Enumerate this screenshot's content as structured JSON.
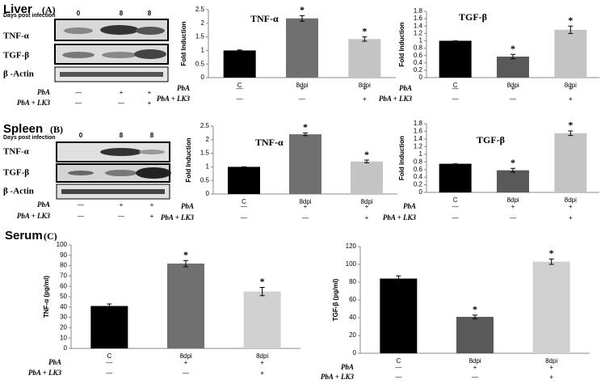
{
  "sections": [
    {
      "name": "Liver",
      "tag": "(A)"
    },
    {
      "name": "Spleen",
      "tag": "(B)"
    },
    {
      "name": "Serum",
      "tag": "(C)"
    }
  ],
  "blots": [
    {
      "header": "Days post infection",
      "lanes": [
        "0",
        "8",
        "8"
      ],
      "rows": [
        "TNF-α",
        "TGF-β",
        "β -Actin"
      ],
      "treatments": [
        {
          "label": "PbA",
          "signs": [
            "—",
            "+",
            "+"
          ]
        },
        {
          "label": "PbA + LK3",
          "signs": [
            "—",
            "—",
            "+"
          ]
        }
      ]
    },
    {
      "header": "Days post infection",
      "lanes": [
        "0",
        "8",
        "8"
      ],
      "rows": [
        "TNF-α",
        "TGF-β",
        "β -Actin"
      ],
      "treatments": [
        {
          "label": "PbA",
          "signs": [
            "—",
            "+",
            "+"
          ]
        },
        {
          "label": "PbA + LK3",
          "signs": [
            "—",
            "—",
            "+"
          ]
        }
      ]
    }
  ],
  "chart_data": [
    {
      "type": "bar",
      "title": "TNF-α",
      "ylabel": "Fold Induction",
      "categories": [
        "C",
        "8dpi",
        "8dpi"
      ],
      "values": [
        1,
        2.18,
        1.42
      ],
      "errors": [
        0.02,
        0.1,
        0.08
      ],
      "colors": [
        "#000000",
        "#707070",
        "#c4c4c4"
      ],
      "ylim": [
        0,
        2.5
      ],
      "yticks": [
        0,
        0.5,
        1,
        1.5,
        2,
        2.5
      ],
      "annotations": [
        {
          "index": 1,
          "text": "*"
        },
        {
          "index": 2,
          "text": "*"
        }
      ],
      "treatments": [
        {
          "label": "PbA",
          "signs": [
            "—",
            "+",
            "+"
          ]
        },
        {
          "label": "PbA + LK3",
          "signs": [
            "—",
            "—",
            "+"
          ]
        }
      ]
    },
    {
      "type": "bar",
      "title": "TGF-β",
      "ylabel": "Fold Induction",
      "categories": [
        "C",
        "8dpi",
        "8dpi"
      ],
      "values": [
        1,
        0.57,
        1.3
      ],
      "errors": [
        0,
        0.06,
        0.1
      ],
      "colors": [
        "#000000",
        "#595959",
        "#c4c4c4"
      ],
      "ylim": [
        0,
        1.8
      ],
      "yticks": [
        0,
        0.2,
        0.4,
        0.6,
        0.8,
        1,
        1.2,
        1.4,
        1.6,
        1.8
      ],
      "annotations": [
        {
          "index": 1,
          "text": "*"
        },
        {
          "index": 2,
          "text": "*"
        }
      ],
      "treatments": [
        {
          "label": "PbA",
          "signs": [
            "—",
            "+",
            "+"
          ]
        },
        {
          "label": "PbA + LK3",
          "signs": [
            "—",
            "—",
            "+"
          ]
        }
      ]
    },
    {
      "type": "bar",
      "title": "TNF-α",
      "ylabel": "Fold Induction",
      "categories": [
        "C",
        "8dpi",
        "8dpi"
      ],
      "values": [
        1,
        2.2,
        1.2
      ],
      "errors": [
        0,
        0.05,
        0.05
      ],
      "colors": [
        "#000000",
        "#707070",
        "#c4c4c4"
      ],
      "ylim": [
        0,
        2.5
      ],
      "yticks": [
        0,
        0.5,
        1,
        1.5,
        2,
        2.5
      ],
      "annotations": [
        {
          "index": 1,
          "text": "*"
        },
        {
          "index": 2,
          "text": "*"
        }
      ],
      "treatments": [
        {
          "label": "PbA",
          "signs": [
            "—",
            "+",
            "+"
          ]
        },
        {
          "label": "PbA + LK3",
          "signs": [
            "—",
            "—",
            "+"
          ]
        }
      ]
    },
    {
      "type": "bar",
      "title": "TGF-β",
      "ylabel": "Fold Induction",
      "categories": [
        "C",
        "8dpi",
        "8dpi"
      ],
      "values": [
        0.75,
        0.58,
        1.55
      ],
      "errors": [
        0,
        0.05,
        0.06
      ],
      "colors": [
        "#000000",
        "#595959",
        "#c4c4c4"
      ],
      "ylim": [
        0,
        1.8
      ],
      "yticks": [
        0,
        0.2,
        0.4,
        0.6,
        0.8,
        1,
        1.2,
        1.4,
        1.6,
        1.8
      ],
      "annotations": [
        {
          "index": 1,
          "text": "*"
        },
        {
          "index": 2,
          "text": "*"
        }
      ],
      "treatments": [
        {
          "label": "PbA",
          "signs": [
            "—",
            "+",
            "+"
          ]
        },
        {
          "label": "PbA + LK3",
          "signs": [
            "—",
            "—",
            "+"
          ]
        }
      ]
    },
    {
      "type": "bar",
      "ylabel": "TNF-α (pg/ml)",
      "categories": [
        "C",
        "8dpi",
        "8dpi"
      ],
      "values": [
        41,
        82,
        55
      ],
      "errors": [
        2,
        3,
        4
      ],
      "colors": [
        "#000000",
        "#707070",
        "#d0d0d0"
      ],
      "ylim": [
        0,
        100
      ],
      "yticks": [
        0,
        10,
        20,
        30,
        40,
        50,
        60,
        70,
        80,
        90,
        100
      ],
      "annotations": [
        {
          "index": 1,
          "text": "*"
        },
        {
          "index": 2,
          "text": "*"
        }
      ],
      "treatments": [
        {
          "label": "PbA",
          "signs": [
            "—",
            "+",
            "+"
          ]
        },
        {
          "label": "PbA + LK3",
          "signs": [
            "—",
            "—",
            "+"
          ]
        }
      ]
    },
    {
      "type": "bar",
      "ylabel": "TGF-β (pg/ml)",
      "categories": [
        "C",
        "8dpi",
        "8dpi"
      ],
      "values": [
        84,
        41,
        103
      ],
      "errors": [
        3,
        2,
        3
      ],
      "colors": [
        "#000000",
        "#595959",
        "#d0d0d0"
      ],
      "ylim": [
        0,
        120
      ],
      "yticks": [
        0,
        20,
        40,
        60,
        80,
        100,
        120
      ],
      "annotations": [
        {
          "index": 1,
          "text": "*"
        },
        {
          "index": 2,
          "text": "*"
        }
      ],
      "treatments": [
        {
          "label": "PbA",
          "signs": [
            "—",
            "+",
            "+"
          ]
        },
        {
          "label": "PbA + LK3",
          "signs": [
            "—",
            "—",
            "+"
          ]
        }
      ]
    }
  ]
}
